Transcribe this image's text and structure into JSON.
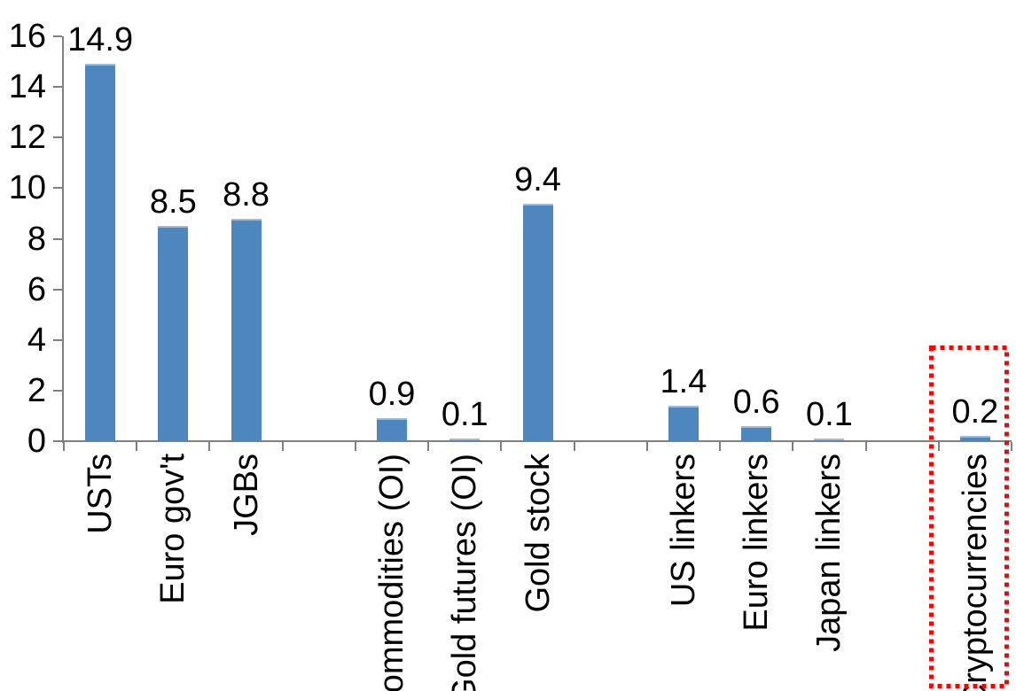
{
  "chart_data": {
    "type": "bar",
    "title": "",
    "xlabel": "",
    "ylabel": "",
    "ylim": [
      0,
      16
    ],
    "yticks": [
      0,
      2,
      4,
      6,
      8,
      10,
      12,
      14,
      16
    ],
    "grid": false,
    "legend": null,
    "slot_count": 13,
    "items": [
      {
        "slot": 0,
        "label": "USTs",
        "value": 14.9,
        "value_label": "14.9",
        "highlighted": false
      },
      {
        "slot": 1,
        "label": "Euro gov't",
        "value": 8.5,
        "value_label": "8.5",
        "highlighted": false
      },
      {
        "slot": 2,
        "label": "JGBs",
        "value": 8.8,
        "value_label": "8.8",
        "highlighted": false
      },
      {
        "slot": 4,
        "label": "Commodities (OI)",
        "value": 0.9,
        "value_label": "0.9",
        "highlighted": false
      },
      {
        "slot": 5,
        "label": "Gold futures (OI)",
        "value": 0.1,
        "value_label": "0.1",
        "highlighted": false
      },
      {
        "slot": 6,
        "label": "Gold stock",
        "value": 9.4,
        "value_label": "9.4",
        "highlighted": false
      },
      {
        "slot": 8,
        "label": "US linkers",
        "value": 1.4,
        "value_label": "1.4",
        "highlighted": false
      },
      {
        "slot": 9,
        "label": "Euro linkers",
        "value": 0.6,
        "value_label": "0.6",
        "highlighted": false
      },
      {
        "slot": 10,
        "label": "Japan linkers",
        "value": 0.1,
        "value_label": "0.1",
        "highlighted": false
      },
      {
        "slot": 12,
        "label": "Cryptocurrencies",
        "value": 0.2,
        "value_label": "0.2",
        "highlighted": true
      }
    ],
    "colors": {
      "bar": "#4E86BE",
      "axis": "#808080",
      "text": "#000000",
      "highlight_box": "#FF0000"
    },
    "highlight": {
      "target": "Cryptocurrencies",
      "style": "red-dotted-box"
    }
  }
}
